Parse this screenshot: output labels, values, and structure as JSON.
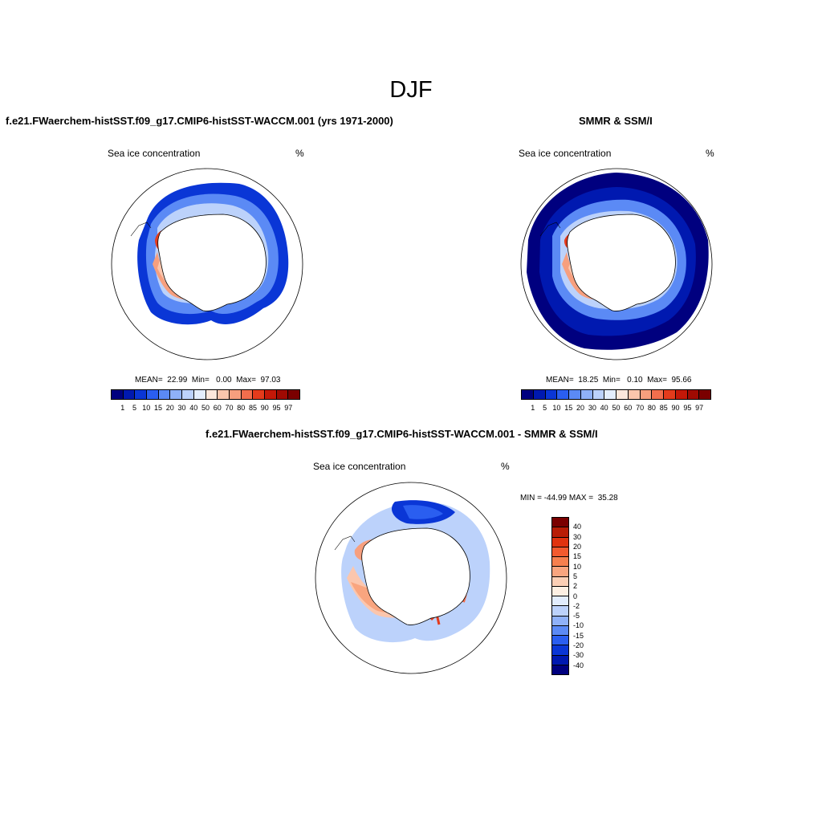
{
  "main_title": "DJF",
  "panels": [
    {
      "title": "f.e21.FWaerchem-histSST.f09_g17.CMIP6-histSST-WACCM.001 (yrs 1971-2000)",
      "left_label": "Sea ice concentration",
      "right_label": "%",
      "stats": "MEAN=  22.99  Min=   0.00  Max=  97.03"
    },
    {
      "title": "SMMR & SSM/I",
      "left_label": "Sea ice concentration",
      "right_label": "%",
      "stats": "MEAN=  18.25  Min=   0.10  Max=  95.66"
    },
    {
      "title": "f.e21.FWaerchem-histSST.f09_g17.CMIP6-histSST-WACCM.001 - SMMR & SSM/I",
      "left_label": "Sea ice concentration",
      "right_label": "%",
      "stats": "MIN = -44.99 MAX =  35.28"
    }
  ],
  "colorbar_top": {
    "labels": [
      "1",
      "5",
      "10",
      "15",
      "20",
      "30",
      "40",
      "50",
      "60",
      "70",
      "80",
      "85",
      "90",
      "95",
      "97"
    ],
    "colors": [
      "#00007f",
      "#0019b0",
      "#0a36d6",
      "#2a5ef0",
      "#5b8af5",
      "#8fb1f8",
      "#bcd2fb",
      "#e4eefd",
      "#fde8dc",
      "#fbc6ad",
      "#f79f7e",
      "#f26e4d",
      "#e43b1c",
      "#c41808",
      "#a00a02",
      "#7a0000"
    ]
  },
  "colorbar_diff": {
    "labels": [
      "40",
      "30",
      "20",
      "15",
      "10",
      "5",
      "2",
      "0",
      "-2",
      "-5",
      "-10",
      "-15",
      "-20",
      "-30",
      "-40"
    ],
    "colors": [
      "#7a0000",
      "#b81d06",
      "#e0330f",
      "#f35a2e",
      "#f6804f",
      "#f9a57f",
      "#fbcfb5",
      "#fdf0e3",
      "#e2edfd",
      "#bcd2fb",
      "#8fb1f8",
      "#5b8af5",
      "#2a5ef0",
      "#0a36d6",
      "#0019b0",
      "#00007f"
    ]
  },
  "colors": {
    "ocean": "#ffffff",
    "land": "#ffffff",
    "coastline": "#000000"
  }
}
